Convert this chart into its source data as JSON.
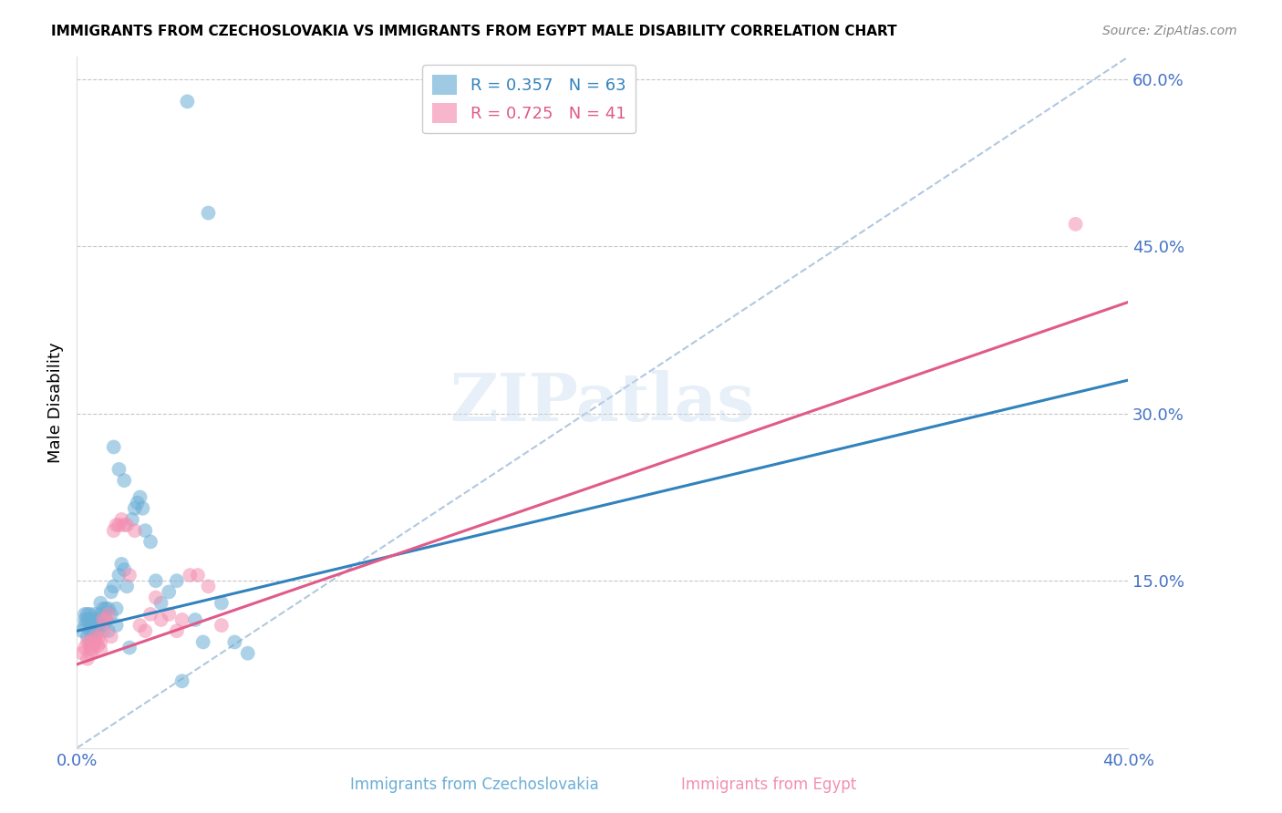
{
  "title": "IMMIGRANTS FROM CZECHOSLOVAKIA VS IMMIGRANTS FROM EGYPT MALE DISABILITY CORRELATION CHART",
  "source": "Source: ZipAtlas.com",
  "ylabel": "Male Disability",
  "xlim": [
    0.0,
    0.4
  ],
  "ylim": [
    0.0,
    0.62
  ],
  "yticks": [
    0.15,
    0.3,
    0.45,
    0.6
  ],
  "ytick_labels": [
    "15.0%",
    "30.0%",
    "45.0%",
    "60.0%"
  ],
  "blue_R": 0.357,
  "blue_N": 63,
  "pink_R": 0.725,
  "pink_N": 41,
  "blue_color": "#6baed6",
  "pink_color": "#f48fb1",
  "blue_line_color": "#3182bd",
  "pink_line_color": "#e05a8a",
  "dashed_line_color": "#b0c8e0",
  "watermark": "ZIPatlas",
  "background_color": "#ffffff",
  "grid_color": "#c8c8c8",
  "tick_label_color": "#4472c4",
  "blue_line_x": [
    0.0,
    0.4
  ],
  "blue_line_y": [
    0.105,
    0.33
  ],
  "pink_line_x": [
    0.0,
    0.4
  ],
  "pink_line_y": [
    0.075,
    0.4
  ],
  "dashed_line_x": [
    0.0,
    0.4
  ],
  "dashed_line_y": [
    0.0,
    0.62
  ],
  "blue_scatter_x": [
    0.002,
    0.003,
    0.003,
    0.003,
    0.004,
    0.004,
    0.004,
    0.005,
    0.005,
    0.005,
    0.005,
    0.005,
    0.006,
    0.006,
    0.006,
    0.007,
    0.007,
    0.007,
    0.007,
    0.008,
    0.008,
    0.008,
    0.009,
    0.009,
    0.01,
    0.01,
    0.01,
    0.011,
    0.011,
    0.012,
    0.012,
    0.013,
    0.013,
    0.014,
    0.015,
    0.015,
    0.016,
    0.017,
    0.018,
    0.019,
    0.02,
    0.021,
    0.022,
    0.023,
    0.024,
    0.025,
    0.026,
    0.028,
    0.03,
    0.032,
    0.035,
    0.038,
    0.04,
    0.042,
    0.045,
    0.048,
    0.05,
    0.055,
    0.06,
    0.065,
    0.014,
    0.016,
    0.018
  ],
  "blue_scatter_y": [
    0.105,
    0.11,
    0.115,
    0.12,
    0.1,
    0.115,
    0.12,
    0.095,
    0.105,
    0.11,
    0.115,
    0.12,
    0.105,
    0.11,
    0.115,
    0.1,
    0.108,
    0.115,
    0.12,
    0.105,
    0.11,
    0.115,
    0.12,
    0.13,
    0.11,
    0.115,
    0.125,
    0.115,
    0.125,
    0.105,
    0.125,
    0.12,
    0.14,
    0.145,
    0.11,
    0.125,
    0.155,
    0.165,
    0.16,
    0.145,
    0.09,
    0.205,
    0.215,
    0.22,
    0.225,
    0.215,
    0.195,
    0.185,
    0.15,
    0.13,
    0.14,
    0.15,
    0.06,
    0.58,
    0.115,
    0.095,
    0.48,
    0.13,
    0.095,
    0.085,
    0.27,
    0.25,
    0.24
  ],
  "pink_scatter_x": [
    0.002,
    0.003,
    0.004,
    0.004,
    0.005,
    0.005,
    0.005,
    0.006,
    0.006,
    0.007,
    0.007,
    0.008,
    0.008,
    0.009,
    0.009,
    0.01,
    0.01,
    0.011,
    0.012,
    0.013,
    0.014,
    0.015,
    0.016,
    0.017,
    0.018,
    0.019,
    0.02,
    0.022,
    0.024,
    0.026,
    0.028,
    0.03,
    0.032,
    0.035,
    0.038,
    0.04,
    0.043,
    0.046,
    0.05,
    0.055,
    0.38
  ],
  "pink_scatter_y": [
    0.085,
    0.09,
    0.08,
    0.095,
    0.085,
    0.09,
    0.095,
    0.088,
    0.092,
    0.095,
    0.1,
    0.092,
    0.098,
    0.088,
    0.095,
    0.105,
    0.115,
    0.115,
    0.12,
    0.1,
    0.195,
    0.2,
    0.2,
    0.205,
    0.2,
    0.2,
    0.155,
    0.195,
    0.11,
    0.105,
    0.12,
    0.135,
    0.115,
    0.12,
    0.105,
    0.115,
    0.155,
    0.155,
    0.145,
    0.11,
    0.47
  ]
}
